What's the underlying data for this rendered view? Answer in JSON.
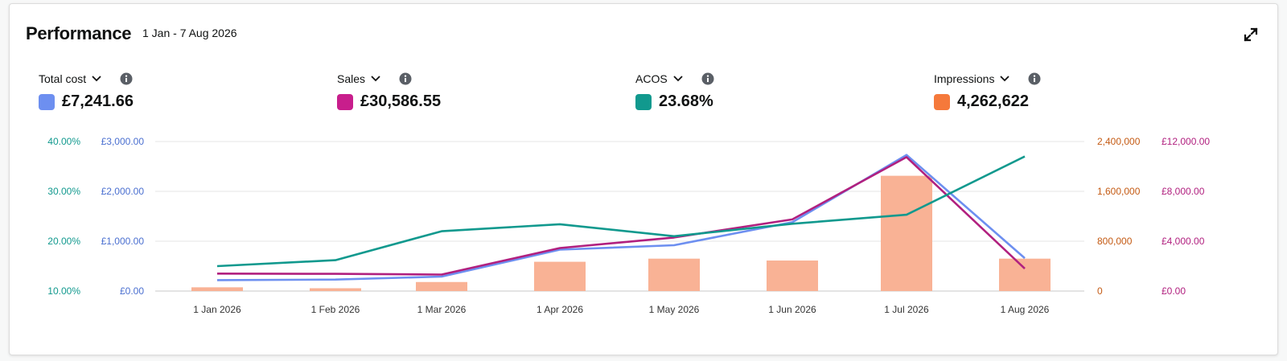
{
  "header": {
    "title": "Performance",
    "date_range": "1 Jan - 7 Aug 2026"
  },
  "metrics": [
    {
      "label": "Total cost",
      "value": "£7,241.66",
      "color": "#6d8ff0"
    },
    {
      "label": "Sales",
      "value": "£30,586.55",
      "color": "#c81e8c"
    },
    {
      "label": "ACOS",
      "value": "23.68%",
      "color": "#11998e"
    },
    {
      "label": "Impressions",
      "value": "4,262,622",
      "color": "#f5793b"
    }
  ],
  "icons": {
    "dropdown": "chevron-down-icon",
    "info": "info-icon",
    "expand": "expand-icon"
  },
  "chart_data": {
    "type": "bar+line",
    "categories": [
      "1 Jan 2026",
      "1 Feb 2026",
      "1 Mar 2026",
      "1 Apr 2026",
      "1 May 2026",
      "1 Jun 2026",
      "1 Jul 2026",
      "1 Aug 2026"
    ],
    "axes": {
      "acos": {
        "ticks": [
          "10.00%",
          "20.00%",
          "30.00%",
          "40.00%"
        ],
        "range": [
          10,
          40
        ],
        "color": "#11998e"
      },
      "cost": {
        "ticks": [
          "£0.00",
          "£1,000.00",
          "£2,000.00",
          "£3,000.00"
        ],
        "range": [
          0,
          3000
        ],
        "color": "#4a6fd0"
      },
      "impressions": {
        "ticks": [
          "0",
          "800,000",
          "1,600,000",
          "2,400,000"
        ],
        "range": [
          0,
          2400000
        ],
        "color": "#c45a13"
      },
      "sales": {
        "ticks": [
          "£0.00",
          "£4,000.00",
          "£8,000.00",
          "£12,000.00"
        ],
        "range": [
          0,
          12000
        ],
        "color": "#b1207f"
      }
    },
    "series": [
      {
        "name": "Impressions",
        "kind": "bar",
        "axis": "impressions",
        "color": "#f9b295",
        "values": [
          60000,
          45000,
          145000,
          470000,
          520000,
          490000,
          1850000,
          520000
        ]
      },
      {
        "name": "Total cost",
        "kind": "line",
        "axis": "cost",
        "color": "#6d8ff0",
        "values": [
          220,
          230,
          290,
          830,
          920,
          1380,
          2730,
          660
        ]
      },
      {
        "name": "Sales",
        "kind": "line",
        "axis": "sales",
        "color": "#b1207f",
        "values": [
          1400,
          1380,
          1320,
          3450,
          4300,
          5750,
          10750,
          1800
        ]
      },
      {
        "name": "ACOS",
        "kind": "line",
        "axis": "acos",
        "color": "#11998e",
        "values": [
          15.0,
          16.2,
          22.0,
          23.4,
          21.0,
          23.5,
          25.3,
          37.0
        ]
      }
    ],
    "grid": true,
    "legend": "top"
  }
}
